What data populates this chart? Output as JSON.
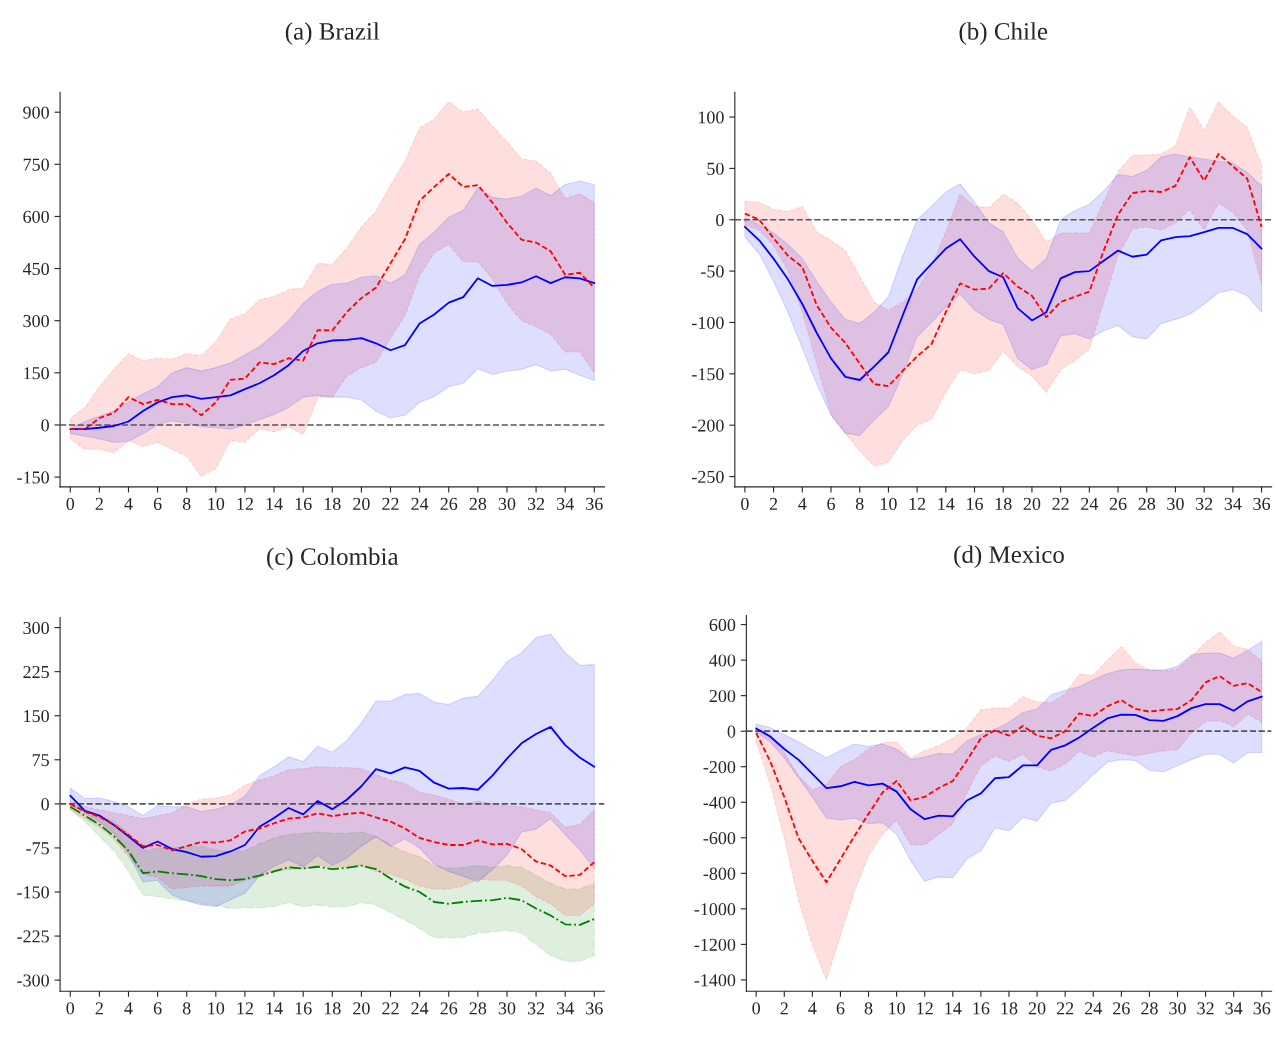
{
  "chart_data": [
    {
      "type": "line",
      "title": "(a) Brazil",
      "x": [
        0,
        1,
        2,
        3,
        4,
        5,
        6,
        7,
        8,
        9,
        10,
        11,
        12,
        13,
        14,
        15,
        16,
        17,
        18,
        19,
        20,
        21,
        22,
        23,
        24,
        25,
        26,
        27,
        28,
        29,
        30,
        31,
        32,
        33,
        34,
        35,
        36
      ],
      "xlim": [
        -0.7,
        36.7
      ],
      "xticks": [
        0,
        2,
        4,
        6,
        8,
        10,
        12,
        14,
        16,
        18,
        20,
        22,
        24,
        26,
        28,
        30,
        32,
        34,
        36
      ],
      "ylim": [
        -178,
        957
      ],
      "yticks": [
        -150,
        0,
        150,
        300,
        450,
        600,
        750,
        900
      ],
      "grid": false,
      "legend": false,
      "ref_lines": [
        {
          "axis": "y",
          "value": 0,
          "color": "#555555",
          "line_style": "dashed"
        }
      ],
      "series": [
        {
          "color": "#ff0000",
          "line_style": "dashed",
          "values": [
            -12,
            -12,
            20,
            35,
            80,
            60,
            72,
            60,
            60,
            28,
            65,
            130,
            133,
            180,
            175,
            192,
            185,
            273,
            272,
            325,
            365,
            395,
            465,
            535,
            645,
            685,
            722,
            685,
            690,
            640,
            582,
            533,
            525,
            500,
            432,
            438,
            395
          ],
          "lower": [
            -40,
            -70,
            -70,
            -80,
            -45,
            -62,
            -50,
            -70,
            -90,
            -148,
            -125,
            -45,
            -50,
            -10,
            -20,
            -5,
            -28,
            80,
            80,
            140,
            165,
            180,
            250,
            315,
            430,
            495,
            520,
            470,
            470,
            420,
            350,
            300,
            283,
            260,
            210,
            210,
            150
          ],
          "upper": [
            20,
            50,
            110,
            160,
            205,
            185,
            192,
            190,
            205,
            200,
            240,
            305,
            320,
            360,
            370,
            390,
            395,
            465,
            462,
            510,
            570,
            615,
            690,
            760,
            855,
            880,
            930,
            900,
            910,
            860,
            815,
            765,
            760,
            725,
            652,
            665,
            640
          ]
        },
        {
          "color": "#0000ff",
          "line_style": "solid",
          "values": [
            -12,
            -12,
            -8,
            -3,
            10,
            40,
            65,
            80,
            85,
            75,
            80,
            85,
            103,
            120,
            143,
            172,
            213,
            235,
            243,
            245,
            250,
            235,
            215,
            230,
            292,
            318,
            352,
            368,
            422,
            400,
            403,
            410,
            428,
            408,
            425,
            422,
            408
          ],
          "lower": [
            -25,
            -32,
            -40,
            -50,
            -47,
            -25,
            0,
            12,
            5,
            -5,
            -8,
            -12,
            0,
            15,
            30,
            50,
            80,
            85,
            80,
            80,
            72,
            40,
            20,
            28,
            65,
            82,
            110,
            120,
            162,
            145,
            155,
            160,
            173,
            155,
            160,
            143,
            128
          ],
          "upper": [
            -10,
            10,
            25,
            40,
            65,
            90,
            110,
            150,
            165,
            155,
            165,
            178,
            202,
            225,
            260,
            300,
            350,
            385,
            405,
            408,
            425,
            430,
            408,
            432,
            520,
            555,
            598,
            618,
            682,
            655,
            650,
            658,
            682,
            660,
            692,
            702,
            692
          ]
        }
      ]
    },
    {
      "type": "line",
      "title": "(b) Chile",
      "x": [
        0,
        1,
        2,
        3,
        4,
        5,
        6,
        7,
        8,
        9,
        10,
        11,
        12,
        13,
        14,
        15,
        16,
        17,
        18,
        19,
        20,
        21,
        22,
        23,
        24,
        25,
        26,
        27,
        28,
        29,
        30,
        31,
        32,
        33,
        34,
        35,
        36
      ],
      "xlim": [
        -0.7,
        36.7
      ],
      "xticks": [
        0,
        2,
        4,
        6,
        8,
        10,
        12,
        14,
        16,
        18,
        20,
        22,
        24,
        26,
        28,
        30,
        32,
        34,
        36
      ],
      "ylim": [
        -260,
        124
      ],
      "yticks": [
        -250,
        -200,
        -150,
        -100,
        -50,
        0,
        50,
        100
      ],
      "grid": false,
      "legend": false,
      "ref_lines": [
        {
          "axis": "y",
          "value": 0,
          "color": "#555555",
          "line_style": "dashed"
        }
      ],
      "series": [
        {
          "color": "#ff0000",
          "line_style": "dashed",
          "values": [
            6,
            0,
            -18,
            -35,
            -46,
            -83,
            -105,
            -120,
            -140,
            -160,
            -162,
            -147,
            -133,
            -121,
            -90,
            -62,
            -68,
            -67,
            -52,
            -65,
            -74,
            -95,
            -80,
            -75,
            -70,
            -30,
            5,
            26,
            28,
            27,
            33,
            61,
            38,
            64,
            52,
            40,
            -7
          ],
          "lower": [
            -5,
            -10,
            -25,
            -50,
            -90,
            -140,
            -190,
            -208,
            -225,
            -240,
            -236,
            -215,
            -200,
            -194,
            -168,
            -146,
            -150,
            -147,
            -128,
            -143,
            -152,
            -168,
            -146,
            -137,
            -126,
            -80,
            -35,
            -9,
            -7,
            -10,
            -3,
            10,
            -10,
            16,
            7,
            -10,
            -63
          ],
          "upper": [
            18,
            17,
            10,
            8,
            13,
            -12,
            -20,
            -30,
            -55,
            -80,
            -88,
            -80,
            -68,
            -45,
            -12,
            25,
            13,
            12,
            25,
            16,
            0,
            -22,
            -13,
            -13,
            -13,
            18,
            47,
            63,
            63,
            64,
            72,
            110,
            87,
            115,
            101,
            90,
            53
          ]
        },
        {
          "color": "#0000ff",
          "line_style": "solid",
          "values": [
            -7,
            -20,
            -38,
            -58,
            -82,
            -110,
            -135,
            -153,
            -156,
            -143,
            -129,
            -93,
            -58,
            -43,
            -28,
            -19,
            -36,
            -50,
            -56,
            -86,
            -98,
            -90,
            -57,
            -51,
            -50,
            -40,
            -30,
            -36,
            -34,
            -20,
            -17,
            -16,
            -12,
            -8,
            -8,
            -14,
            -28
          ],
          "lower": [
            -17,
            -33,
            -60,
            -90,
            -125,
            -160,
            -190,
            -208,
            -210,
            -195,
            -182,
            -150,
            -114,
            -100,
            -85,
            -72,
            -88,
            -97,
            -102,
            -135,
            -146,
            -141,
            -113,
            -111,
            -116,
            -108,
            -103,
            -114,
            -116,
            -101,
            -97,
            -92,
            -82,
            -71,
            -68,
            -74,
            -90
          ],
          "upper": [
            2,
            -5,
            -13,
            -24,
            -38,
            -60,
            -80,
            -97,
            -101,
            -90,
            -75,
            -35,
            0,
            13,
            27,
            35,
            17,
            -3,
            -12,
            -37,
            -50,
            -38,
            0,
            9,
            15,
            28,
            44,
            42,
            48,
            61,
            64,
            61,
            59,
            57,
            55,
            46,
            33
          ]
        }
      ]
    },
    {
      "type": "line",
      "title": "(c) Colombia",
      "x": [
        0,
        1,
        2,
        3,
        4,
        5,
        6,
        7,
        8,
        9,
        10,
        11,
        12,
        13,
        14,
        15,
        16,
        17,
        18,
        19,
        20,
        21,
        22,
        23,
        24,
        25,
        26,
        27,
        28,
        29,
        30,
        31,
        32,
        33,
        34,
        35,
        36
      ],
      "xlim": [
        -0.7,
        36.7
      ],
      "xticks": [
        0,
        2,
        4,
        6,
        8,
        10,
        12,
        14,
        16,
        18,
        20,
        22,
        24,
        26,
        28,
        30,
        32,
        34,
        36
      ],
      "ylim": [
        -319,
        317
      ],
      "yticks": [
        -300,
        -225,
        -150,
        -75,
        0,
        75,
        150,
        225,
        300
      ],
      "grid": false,
      "legend": false,
      "ref_lines": [
        {
          "axis": "y",
          "value": 0,
          "color": "#555555",
          "line_style": "dashed"
        }
      ],
      "series": [
        {
          "color": "#008000",
          "line_style": "dashdot",
          "values": [
            -5,
            -20,
            -35,
            -55,
            -80,
            -118,
            -115,
            -118,
            -120,
            -123,
            -128,
            -130,
            -128,
            -122,
            -115,
            -108,
            -110,
            -107,
            -111,
            -109,
            -105,
            -111,
            -127,
            -141,
            -150,
            -167,
            -170,
            -167,
            -165,
            -164,
            -160,
            -164,
            -178,
            -190,
            -205,
            -206,
            -196
          ],
          "lower": [
            -10,
            -30,
            -55,
            -80,
            -115,
            -155,
            -158,
            -162,
            -165,
            -170,
            -173,
            -178,
            -177,
            -177,
            -175,
            -168,
            -175,
            -172,
            -175,
            -175,
            -168,
            -172,
            -185,
            -198,
            -212,
            -228,
            -228,
            -227,
            -220,
            -218,
            -215,
            -220,
            -240,
            -258,
            -268,
            -268,
            -258
          ],
          "upper": [
            0,
            -10,
            -20,
            -30,
            -50,
            -80,
            -75,
            -75,
            -72,
            -72,
            -78,
            -82,
            -80,
            -68,
            -58,
            -52,
            -50,
            -48,
            -50,
            -50,
            -48,
            -55,
            -70,
            -82,
            -90,
            -105,
            -110,
            -108,
            -105,
            -108,
            -105,
            -108,
            -122,
            -135,
            -145,
            -145,
            -135
          ]
        },
        {
          "color": "#ff0000",
          "line_style": "dashed",
          "values": [
            0,
            -13,
            -22,
            -36,
            -53,
            -72,
            -70,
            -79,
            -72,
            -65,
            -66,
            -62,
            -47,
            -42,
            -33,
            -25,
            -23,
            -16,
            -21,
            -17,
            -15,
            -23,
            -30,
            -42,
            -58,
            -65,
            -70,
            -70,
            -62,
            -69,
            -68,
            -77,
            -98,
            -105,
            -123,
            -121,
            -99
          ],
          "lower": [
            -10,
            -25,
            -40,
            -60,
            -90,
            -120,
            -125,
            -145,
            -142,
            -140,
            -140,
            -140,
            -130,
            -125,
            -115,
            -112,
            -110,
            -105,
            -108,
            -108,
            -105,
            -115,
            -120,
            -128,
            -140,
            -145,
            -145,
            -140,
            -128,
            -130,
            -130,
            -140,
            -158,
            -170,
            -190,
            -190,
            -170
          ],
          "upper": [
            5,
            -5,
            -10,
            -15,
            -20,
            -25,
            -20,
            -15,
            0,
            8,
            10,
            15,
            32,
            40,
            48,
            58,
            60,
            63,
            62,
            62,
            60,
            50,
            40,
            35,
            20,
            15,
            8,
            0,
            5,
            0,
            -3,
            -5,
            -10,
            -15,
            -40,
            -35,
            -10
          ]
        },
        {
          "color": "#0000ff",
          "line_style": "solid",
          "values": [
            14,
            -12,
            -20,
            -36,
            -55,
            -75,
            -64,
            -77,
            -82,
            -90,
            -89,
            -81,
            -70,
            -39,
            -24,
            -7,
            -18,
            5,
            -9,
            7,
            30,
            59,
            52,
            62,
            56,
            36,
            26,
            27,
            24,
            48,
            77,
            103,
            119,
            131,
            100,
            79,
            63
          ],
          "lower": [
            0,
            -15,
            -30,
            -50,
            -85,
            -133,
            -130,
            -155,
            -165,
            -172,
            -175,
            -163,
            -152,
            -122,
            -106,
            -95,
            -107,
            -88,
            -105,
            -92,
            -72,
            -56,
            -72,
            -60,
            -75,
            -102,
            -115,
            -123,
            -133,
            -112,
            -87,
            -48,
            -43,
            -25,
            -52,
            -78,
            -110
          ],
          "upper": [
            27,
            9,
            10,
            4,
            -5,
            -20,
            -3,
            -5,
            -5,
            -13,
            -9,
            -2,
            13,
            48,
            63,
            80,
            72,
            98,
            88,
            108,
            138,
            175,
            175,
            186,
            188,
            173,
            169,
            180,
            183,
            210,
            242,
            257,
            283,
            289,
            257,
            236,
            237
          ]
        }
      ]
    },
    {
      "type": "line",
      "title": "(d) Mexico",
      "x": [
        0,
        1,
        2,
        3,
        4,
        5,
        6,
        7,
        8,
        9,
        10,
        11,
        12,
        13,
        14,
        15,
        16,
        17,
        18,
        19,
        20,
        21,
        22,
        23,
        24,
        25,
        26,
        27,
        28,
        29,
        30,
        31,
        32,
        33,
        34,
        35,
        36
      ],
      "xlim": [
        -0.7,
        36.7
      ],
      "xticks": [
        0,
        2,
        4,
        6,
        8,
        10,
        12,
        14,
        16,
        18,
        20,
        22,
        24,
        26,
        28,
        30,
        32,
        34,
        36
      ],
      "ylim": [
        -1464,
        651
      ],
      "yticks": [
        -1400,
        -1200,
        -1000,
        -800,
        -600,
        -400,
        -200,
        0,
        200,
        400,
        600
      ],
      "grid": false,
      "legend": false,
      "ref_lines": [
        {
          "axis": "y",
          "value": 0,
          "color": "#555555",
          "line_style": "dashed"
        }
      ],
      "series": [
        {
          "color": "#ff0000",
          "line_style": "dashed",
          "values": [
            -10,
            -170,
            -370,
            -600,
            -730,
            -850,
            -720,
            -590,
            -465,
            -345,
            -280,
            -390,
            -370,
            -320,
            -280,
            -165,
            -40,
            5,
            -25,
            30,
            -25,
            -40,
            0,
            100,
            85,
            140,
            175,
            125,
            110,
            120,
            125,
            175,
            275,
            310,
            255,
            270,
            220
          ],
          "lower": [
            -60,
            -300,
            -600,
            -950,
            -1200,
            -1400,
            -1150,
            -900,
            -700,
            -580,
            -500,
            -640,
            -640,
            -580,
            -520,
            -350,
            -195,
            -140,
            -170,
            -130,
            -200,
            -225,
            -185,
            -115,
            -145,
            -110,
            -125,
            -140,
            -125,
            -110,
            -105,
            -10,
            55,
            60,
            25,
            95,
            50
          ],
          "upper": [
            20,
            -20,
            -120,
            -250,
            -330,
            -300,
            -200,
            -160,
            -100,
            -65,
            -60,
            -150,
            -110,
            -80,
            -40,
            20,
            120,
            130,
            130,
            195,
            165,
            160,
            210,
            320,
            315,
            400,
            475,
            385,
            345,
            340,
            350,
            420,
            500,
            560,
            480,
            460,
            395
          ]
        },
        {
          "color": "#0000ff",
          "line_style": "solid",
          "values": [
            15,
            -30,
            -100,
            -160,
            -240,
            -320,
            -310,
            -285,
            -305,
            -295,
            -340,
            -440,
            -495,
            -475,
            -480,
            -390,
            -350,
            -265,
            -258,
            -192,
            -192,
            -105,
            -80,
            -35,
            20,
            72,
            93,
            92,
            62,
            58,
            85,
            130,
            152,
            152,
            115,
            168,
            195
          ],
          "lower": [
            -5,
            -60,
            -150,
            -260,
            -370,
            -490,
            -500,
            -490,
            -520,
            -515,
            -580,
            -730,
            -845,
            -820,
            -825,
            -720,
            -675,
            -545,
            -560,
            -485,
            -505,
            -405,
            -390,
            -320,
            -245,
            -175,
            -160,
            -165,
            -220,
            -228,
            -195,
            -160,
            -130,
            -130,
            -180,
            -120,
            -120
          ],
          "upper": [
            40,
            20,
            -20,
            -60,
            -105,
            -150,
            -108,
            -72,
            -85,
            -72,
            -100,
            -160,
            -145,
            -125,
            -128,
            -55,
            -20,
            10,
            50,
            105,
            125,
            205,
            230,
            250,
            290,
            325,
            345,
            350,
            345,
            345,
            365,
            430,
            440,
            440,
            410,
            455,
            505
          ]
        }
      ]
    }
  ]
}
